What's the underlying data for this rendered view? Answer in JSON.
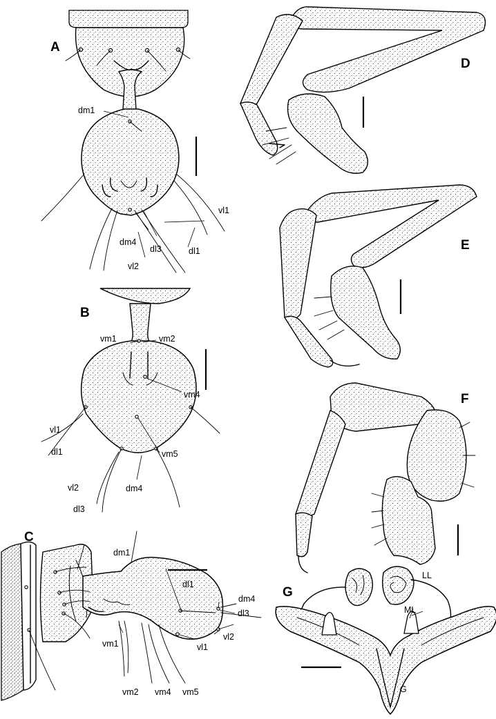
{
  "panels": {
    "A": {
      "label": "A",
      "setae": [
        "dm1",
        "vl1",
        "dl1",
        "dm4",
        "dl3",
        "vl2"
      ]
    },
    "B": {
      "label": "B",
      "setae": [
        "vm1",
        "vm2",
        "vm4",
        "vl1",
        "dl1",
        "vm5",
        "vl2",
        "dm4",
        "dl3"
      ]
    },
    "C": {
      "label": "C",
      "setae": [
        "dm1",
        "dl1",
        "dm4",
        "dl3",
        "vl2",
        "vm1",
        "vl1",
        "vm2",
        "vm4",
        "vm5"
      ]
    },
    "D": {
      "label": "D"
    },
    "E": {
      "label": "E"
    },
    "F": {
      "label": "F"
    },
    "G": {
      "label": "G",
      "parts": [
        "LL",
        "ML",
        "G"
      ]
    }
  }
}
